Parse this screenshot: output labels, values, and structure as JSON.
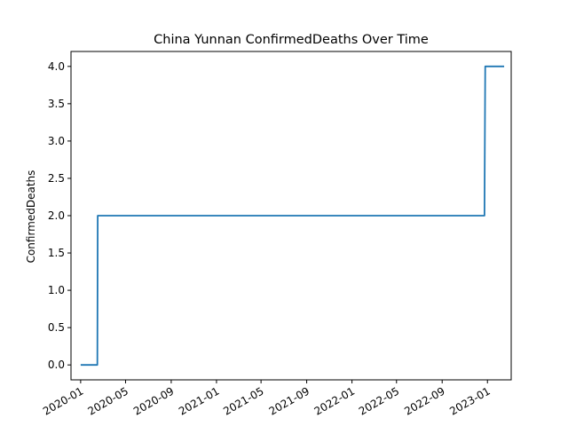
{
  "chart_data": {
    "type": "line",
    "title": "China Yunnan ConfirmedDeaths Over Time",
    "xlabel": "",
    "ylabel": "ConfirmedDeaths",
    "x_type": "date",
    "xlim": [
      "2019-12-06",
      "2023-03-06"
    ],
    "ylim": [
      -0.2,
      4.2
    ],
    "x_ticks": [
      "2020-01",
      "2020-05",
      "2020-09",
      "2021-01",
      "2021-05",
      "2021-09",
      "2022-01",
      "2022-05",
      "2022-09",
      "2023-01"
    ],
    "y_ticks": [
      "0.0",
      "0.5",
      "1.0",
      "1.5",
      "2.0",
      "2.5",
      "3.0",
      "3.5",
      "4.0"
    ],
    "grid": false,
    "series": [
      {
        "color": "#1f77b4",
        "x": [
          "2020-01-01",
          "2020-02-15",
          "2020-02-16",
          "2022-12-24",
          "2022-12-26",
          "2023-02-15"
        ],
        "y": [
          0,
          0,
          2,
          2,
          4,
          4
        ]
      }
    ]
  }
}
